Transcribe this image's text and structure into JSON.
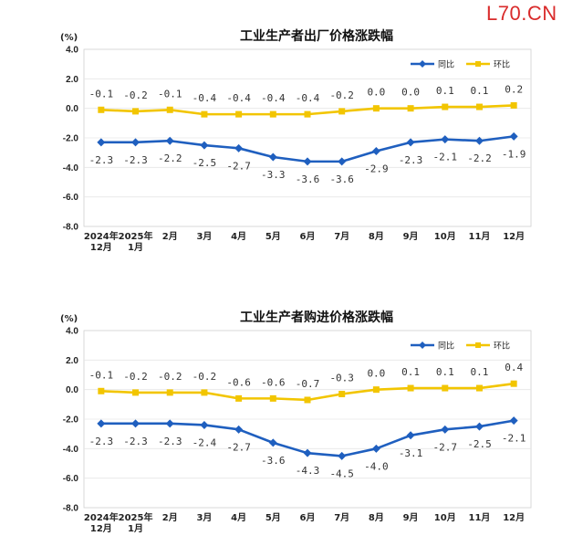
{
  "watermark": "L70.CN",
  "chart_data": [
    {
      "type": "line",
      "title": "工业生产者出厂价格涨跌幅",
      "unit": "(%)",
      "ylim": [
        -8.0,
        4.0
      ],
      "yticks": [
        "4.0",
        "2.0",
        "0.0",
        "-2.0",
        "-4.0",
        "-6.0",
        "-8.0"
      ],
      "ytick_values": [
        4,
        2,
        0,
        -2,
        -4,
        -6,
        -8
      ],
      "categories": [
        [
          "2024年",
          "12月"
        ],
        [
          "2025年",
          "1月"
        ],
        [
          "2月"
        ],
        [
          "3月"
        ],
        [
          "4月"
        ],
        [
          "5月"
        ],
        [
          "6月"
        ],
        [
          "7月"
        ],
        [
          "8月"
        ],
        [
          "9月"
        ],
        [
          "10月"
        ],
        [
          "11月"
        ],
        [
          "12月"
        ]
      ],
      "legend_position": "top-right",
      "series": [
        {
          "name": "同比",
          "color": "#1f5fbf",
          "values": [
            -2.3,
            -2.3,
            -2.2,
            -2.5,
            -2.7,
            -3.3,
            -3.6,
            -3.6,
            -2.9,
            -2.3,
            -2.1,
            -2.2,
            -1.9
          ],
          "labels": [
            "-2.3",
            "-2.3",
            "-2.2",
            "-2.5",
            "-2.7",
            "-3.3",
            "-3.6",
            "-3.6",
            "-2.9",
            "-2.3",
            "-2.1",
            "-2.2",
            "-1.9"
          ]
        },
        {
          "name": "环比",
          "color": "#f2c500",
          "values": [
            -0.1,
            -0.2,
            -0.1,
            -0.4,
            -0.4,
            -0.4,
            -0.4,
            -0.2,
            0.0,
            0.0,
            0.1,
            0.1,
            0.2
          ],
          "labels": [
            "-0.1",
            "-0.2",
            "-0.1",
            "-0.4",
            "-0.4",
            "-0.4",
            "-0.4",
            "-0.2",
            "0.0",
            "0.0",
            "0.1",
            "0.1",
            "0.2"
          ]
        }
      ]
    },
    {
      "type": "line",
      "title": "工业生产者购进价格涨跌幅",
      "unit": "(%)",
      "ylim": [
        -8.0,
        4.0
      ],
      "yticks": [
        "4.0",
        "2.0",
        "0.0",
        "-2.0",
        "-4.0",
        "-6.0",
        "-8.0"
      ],
      "ytick_values": [
        4,
        2,
        0,
        -2,
        -4,
        -6,
        -8
      ],
      "categories": [
        [
          "2024年",
          "12月"
        ],
        [
          "2025年",
          "1月"
        ],
        [
          "2月"
        ],
        [
          "3月"
        ],
        [
          "4月"
        ],
        [
          "5月"
        ],
        [
          "6月"
        ],
        [
          "7月"
        ],
        [
          "8月"
        ],
        [
          "9月"
        ],
        [
          "10月"
        ],
        [
          "11月"
        ],
        [
          "12月"
        ]
      ],
      "legend_position": "top-right",
      "series": [
        {
          "name": "同比",
          "color": "#1f5fbf",
          "values": [
            -2.3,
            -2.3,
            -2.3,
            -2.4,
            -2.7,
            -3.6,
            -4.3,
            -4.5,
            -4.0,
            -3.1,
            -2.7,
            -2.5,
            -2.1
          ],
          "labels": [
            "-2.3",
            "-2.3",
            "-2.3",
            "-2.4",
            "-2.7",
            "-3.6",
            "-4.3",
            "-4.5",
            "-4.0",
            "-3.1",
            "-2.7",
            "-2.5",
            "-2.1"
          ]
        },
        {
          "name": "环比",
          "color": "#f2c500",
          "values": [
            -0.1,
            -0.2,
            -0.2,
            -0.2,
            -0.6,
            -0.6,
            -0.7,
            -0.3,
            0.0,
            0.1,
            0.1,
            0.1,
            0.4
          ],
          "labels": [
            "-0.1",
            "-0.2",
            "-0.2",
            "-0.2",
            "-0.6",
            "-0.6",
            "-0.7",
            "-0.3",
            "0.0",
            "0.1",
            "0.1",
            "0.1",
            "0.4"
          ]
        }
      ]
    }
  ]
}
